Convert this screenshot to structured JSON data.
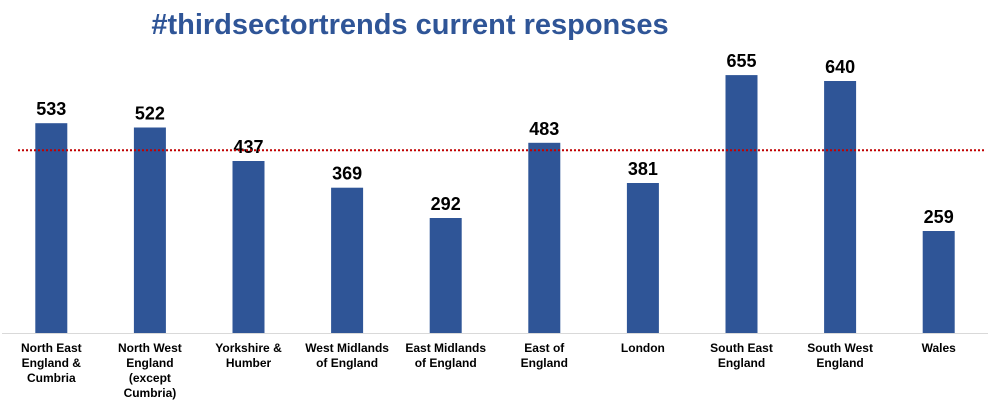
{
  "chart_data": {
    "type": "bar",
    "title": "#thirdsectortrends current responses",
    "categories": [
      [
        "North East",
        "England &",
        "Cumbria"
      ],
      [
        "North West",
        "England",
        "(except",
        "Cumbria)"
      ],
      [
        "Yorkshire &",
        "Humber"
      ],
      [
        "West Midlands",
        "of England"
      ],
      [
        "East Midlands",
        "of England"
      ],
      [
        "East of",
        "England"
      ],
      [
        "London"
      ],
      [
        "South East",
        "England"
      ],
      [
        "South West",
        "England"
      ],
      [
        "Wales"
      ]
    ],
    "values": [
      533,
      522,
      437,
      369,
      292,
      483,
      381,
      655,
      640,
      259
    ],
    "data_labels": [
      "533",
      "522",
      "437",
      "369",
      "292",
      "483",
      "381",
      "655",
      "640",
      "259"
    ],
    "reference_line": 464,
    "ylim": [
      0,
      700
    ],
    "xlabel": "",
    "ylabel": "",
    "grid": false,
    "legend": "none",
    "colors": {
      "bar": "#2F5597",
      "title": "#2F5597",
      "reference_line": "#C00000",
      "axis": "#D9D9D9"
    }
  }
}
